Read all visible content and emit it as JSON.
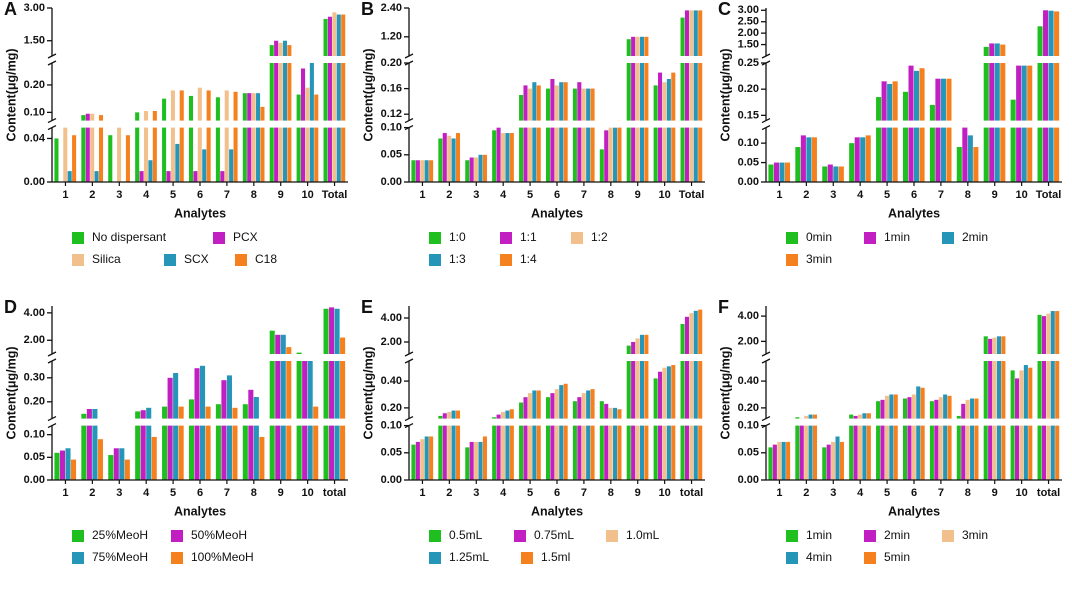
{
  "chart_data": [
    {
      "type": "bar",
      "panel": "A",
      "ylabel": "Content(μg/mg)",
      "xlabel": "Analytes",
      "categories": [
        "1",
        "2",
        "3",
        "4",
        "5",
        "6",
        "7",
        "8",
        "9",
        "10",
        "Total"
      ],
      "segments": [
        {
          "ylim": [
            0,
            0.05
          ],
          "yticks": [
            {
              "value": 0,
              "label": "0.00"
            },
            0.04
          ]
        },
        {
          "ylim": [
            0.07,
            0.28
          ],
          "yticks": [
            {
              "value": 0.1,
              "label": "0.10"
            },
            {
              "value": 0.2,
              "label": "0.20"
            }
          ]
        },
        {
          "ylim": [
            0.8,
            3.0
          ],
          "yticks": [
            {
              "value": 1.5,
              "label": "1.50"
            },
            {
              "value": 3.0,
              "label": "3.00"
            }
          ]
        }
      ],
      "series": [
        {
          "name": "No dispersant",
          "color": "#1fbf1f",
          "values": [
            0.04,
            0.09,
            0.043,
            0.1,
            0.15,
            0.16,
            0.155,
            0.17,
            1.3,
            0.165,
            2.5
          ]
        },
        {
          "name": "PCX",
          "color": "#c21fc2",
          "values": [
            0,
            0.095,
            0,
            0.01,
            0.01,
            0.01,
            0.01,
            0.17,
            1.5,
            0.26,
            2.6
          ]
        },
        {
          "name": "Silica",
          "color": "#f2c08c",
          "values": [
            0.05,
            0.095,
            0.05,
            0.105,
            0.18,
            0.19,
            0.18,
            0.17,
            1.4,
            0.19,
            2.8
          ]
        },
        {
          "name": "SCX",
          "color": "#2596b8",
          "values": [
            0.01,
            0.01,
            0,
            0.02,
            0.035,
            0.03,
            0.03,
            0.17,
            1.5,
            0.28,
            2.7
          ]
        },
        {
          "name": "C18",
          "color": "#f5801e",
          "values": [
            0.043,
            0.09,
            0.043,
            0.105,
            0.18,
            0.18,
            0.175,
            0.12,
            1.3,
            0.165,
            2.7
          ]
        }
      ]
    },
    {
      "type": "bar",
      "panel": "B",
      "ylabel": "Content(μg/mg)",
      "xlabel": "Analytes",
      "categories": [
        "1",
        "2",
        "3",
        "4",
        "5",
        "6",
        "7",
        "8",
        "9",
        "10",
        "Total"
      ],
      "segments": [
        {
          "ylim": [
            0,
            0.1
          ],
          "yticks": [
            {
              "value": 0,
              "label": "0.00"
            },
            0.05,
            {
              "value": 0.1,
              "label": "0.10"
            }
          ]
        },
        {
          "ylim": [
            0.11,
            0.2
          ],
          "yticks": [
            0.12,
            0.16,
            {
              "value": 0.2,
              "label": "0.20"
            }
          ]
        },
        {
          "ylim": [
            0.4,
            2.4
          ],
          "yticks": [
            {
              "value": 1.2,
              "label": "1.20"
            },
            {
              "value": 2.4,
              "label": "2.40"
            }
          ]
        }
      ],
      "series": [
        {
          "name": "1:0",
          "color": "#1fbf1f",
          "values": [
            0.04,
            0.08,
            0.04,
            0.095,
            0.15,
            0.16,
            0.16,
            0.06,
            1.1,
            0.165,
            2.0
          ]
        },
        {
          "name": "1:1",
          "color": "#c21fc2",
          "values": [
            0.04,
            0.09,
            0.045,
            0.1,
            0.165,
            0.175,
            0.17,
            0.095,
            1.2,
            0.185,
            2.3
          ]
        },
        {
          "name": "1:2",
          "color": "#f2c08c",
          "values": [
            0.04,
            0.085,
            0.045,
            0.09,
            0.16,
            0.165,
            0.16,
            0.1,
            1.2,
            0.17,
            2.3
          ]
        },
        {
          "name": "1:3",
          "color": "#2596b8",
          "values": [
            0.04,
            0.08,
            0.05,
            0.09,
            0.17,
            0.17,
            0.16,
            0.105,
            1.2,
            0.175,
            2.3
          ]
        },
        {
          "name": "1:4",
          "color": "#f5801e",
          "values": [
            0.04,
            0.09,
            0.05,
            0.09,
            0.165,
            0.17,
            0.16,
            0.11,
            1.2,
            0.185,
            2.3
          ]
        }
      ]
    },
    {
      "type": "bar",
      "panel": "C",
      "ylabel": "Content(μg/mg)",
      "xlabel": "Analytes",
      "categories": [
        "1",
        "2",
        "3",
        "4",
        "5",
        "6",
        "7",
        "8",
        "9",
        "10",
        "Total"
      ],
      "segments": [
        {
          "ylim": [
            0,
            0.14
          ],
          "yticks": [
            {
              "value": 0,
              "label": "0.00"
            },
            0.05,
            {
              "value": 0.1,
              "label": "0.10"
            }
          ]
        },
        {
          "ylim": [
            0.14,
            0.25
          ],
          "yticks": [
            0.15,
            {
              "value": 0.2,
              "label": "0.20"
            },
            0.25
          ]
        },
        {
          "ylim": [
            1.0,
            3.1
          ],
          "yticks": [
            {
              "value": 1.5,
              "label": "1.50"
            },
            {
              "value": 2.0,
              "label": "2.00"
            },
            {
              "value": 2.5,
              "label": "2.50"
            },
            {
              "value": 3.0,
              "label": "3.00"
            }
          ]
        }
      ],
      "series": [
        {
          "name": "0min",
          "color": "#1fbf1f",
          "values": [
            0.045,
            0.09,
            0.04,
            0.1,
            0.185,
            0.195,
            0.17,
            0.09,
            1.4,
            0.18,
            2.3
          ]
        },
        {
          "name": "1min",
          "color": "#c21fc2",
          "values": [
            0.05,
            0.12,
            0.045,
            0.115,
            0.215,
            0.245,
            0.22,
            0.14,
            1.55,
            0.245,
            3.0
          ]
        },
        {
          "name": "2min",
          "color": "#2596b8",
          "values": [
            0.05,
            0.115,
            0.04,
            0.115,
            0.21,
            0.235,
            0.22,
            0.12,
            1.55,
            0.245,
            2.98
          ]
        },
        {
          "name": "3min",
          "color": "#f5801e",
          "values": [
            0.05,
            0.115,
            0.04,
            0.12,
            0.215,
            0.24,
            0.22,
            0.09,
            1.5,
            0.245,
            2.95
          ]
        }
      ]
    },
    {
      "type": "bar",
      "panel": "D",
      "ylabel": "Content(μg/mg)",
      "xlabel": "Analytes",
      "categories": [
        "1",
        "2",
        "3",
        "4",
        "5",
        "6",
        "7",
        "8",
        "9",
        "10",
        "total"
      ],
      "segments": [
        {
          "ylim": [
            0,
            0.12
          ],
          "yticks": [
            {
              "value": 0,
              "label": "0.00"
            },
            0.05,
            {
              "value": 0.1,
              "label": "0.10"
            }
          ]
        },
        {
          "ylim": [
            0.13,
            0.37
          ],
          "yticks": [
            {
              "value": 0.2,
              "label": "0.20"
            },
            {
              "value": 0.3,
              "label": "0.30"
            }
          ]
        },
        {
          "ylim": [
            1.0,
            4.5
          ],
          "yticks": [
            {
              "value": 2.0,
              "label": "2.00"
            },
            {
              "value": 4.0,
              "label": "4.00"
            }
          ]
        }
      ],
      "series": [
        {
          "name": "25%MeoH",
          "color": "#1fbf1f",
          "values": [
            0.06,
            0.15,
            0.055,
            0.16,
            0.18,
            0.21,
            0.19,
            0.19,
            2.7,
            1.1,
            4.3
          ]
        },
        {
          "name": "50%MeoH",
          "color": "#c21fc2",
          "values": [
            0.065,
            0.17,
            0.07,
            0.165,
            0.3,
            0.34,
            0.29,
            0.25,
            2.4,
            1.0,
            4.4
          ]
        },
        {
          "name": "75%MeoH",
          "color": "#2596b8",
          "values": [
            0.07,
            0.17,
            0.07,
            0.175,
            0.32,
            0.35,
            0.31,
            0.22,
            2.4,
            1.0,
            4.3
          ]
        },
        {
          "name": "100%MeoH",
          "color": "#f5801e",
          "values": [
            0.045,
            0.09,
            0.045,
            0.095,
            0.18,
            0.18,
            0.175,
            0.095,
            1.5,
            0.18,
            2.2
          ]
        }
      ]
    },
    {
      "type": "bar",
      "panel": "E",
      "ylabel": "Content(μg/mg)",
      "xlabel": "Analytes",
      "categories": [
        "1",
        "2",
        "3",
        "4",
        "5",
        "6",
        "7",
        "8",
        "9",
        "10",
        "total"
      ],
      "segments": [
        {
          "ylim": [
            0,
            0.1
          ],
          "yticks": [
            {
              "value": 0,
              "label": "0.00"
            },
            0.05,
            {
              "value": 0.1,
              "label": "0.10"
            }
          ]
        },
        {
          "ylim": [
            0.12,
            0.55
          ],
          "yticks": [
            {
              "value": 0.2,
              "label": "0.20"
            },
            {
              "value": 0.4,
              "label": "0.40"
            }
          ]
        },
        {
          "ylim": [
            1.0,
            5.0
          ],
          "yticks": [
            {
              "value": 2.0,
              "label": "2.00"
            },
            {
              "value": 4.0,
              "label": "4.00"
            }
          ]
        }
      ],
      "series": [
        {
          "name": "0.5mL",
          "color": "#1fbf1f",
          "values": [
            0.065,
            0.14,
            0.06,
            0.13,
            0.24,
            0.28,
            0.25,
            0.25,
            1.7,
            0.42,
            3.5
          ]
        },
        {
          "name": "0.75mL",
          "color": "#c21fc2",
          "values": [
            0.07,
            0.16,
            0.07,
            0.15,
            0.28,
            0.31,
            0.28,
            0.23,
            2.0,
            0.47,
            4.1
          ]
        },
        {
          "name": "1.0mL",
          "color": "#f2c08c",
          "values": [
            0.075,
            0.17,
            0.07,
            0.17,
            0.31,
            0.34,
            0.31,
            0.2,
            2.3,
            0.5,
            4.4
          ]
        },
        {
          "name": "1.25mL",
          "color": "#2596b8",
          "values": [
            0.08,
            0.18,
            0.07,
            0.18,
            0.33,
            0.37,
            0.33,
            0.2,
            2.6,
            0.51,
            4.6
          ]
        },
        {
          "name": "1.5ml",
          "color": "#f5801e",
          "values": [
            0.08,
            0.18,
            0.08,
            0.19,
            0.33,
            0.38,
            0.34,
            0.19,
            2.6,
            0.52,
            4.7
          ]
        }
      ]
    },
    {
      "type": "bar",
      "panel": "F",
      "ylabel": "Content(μg/mg)",
      "xlabel": "Analytes",
      "categories": [
        "1",
        "2",
        "3",
        "4",
        "5",
        "6",
        "7",
        "8",
        "9",
        "10",
        "total"
      ],
      "segments": [
        {
          "ylim": [
            0,
            0.1
          ],
          "yticks": [
            {
              "value": 0,
              "label": "0.00"
            },
            0.05,
            {
              "value": 0.1,
              "label": "0.10"
            }
          ]
        },
        {
          "ylim": [
            0.12,
            0.55
          ],
          "yticks": [
            {
              "value": 0.2,
              "label": "0.20"
            },
            {
              "value": 0.4,
              "label": "0.40"
            }
          ]
        },
        {
          "ylim": [
            1.0,
            4.8
          ],
          "yticks": [
            {
              "value": 2.0,
              "label": "2.00"
            },
            {
              "value": 4.0,
              "label": "4.00"
            }
          ]
        }
      ],
      "series": [
        {
          "name": "1min",
          "color": "#1fbf1f",
          "values": [
            0.06,
            0.13,
            0.06,
            0.15,
            0.25,
            0.27,
            0.25,
            0.14,
            2.4,
            0.48,
            4.1
          ]
        },
        {
          "name": "2min",
          "color": "#c21fc2",
          "values": [
            0.065,
            0.12,
            0.065,
            0.14,
            0.26,
            0.28,
            0.26,
            0.23,
            2.2,
            0.42,
            4.0
          ]
        },
        {
          "name": "3min",
          "color": "#f2c08c",
          "values": [
            0.07,
            0.14,
            0.07,
            0.15,
            0.29,
            0.3,
            0.28,
            0.26,
            2.3,
            0.48,
            4.2
          ]
        },
        {
          "name": "4min",
          "color": "#2596b8",
          "values": [
            0.07,
            0.15,
            0.08,
            0.16,
            0.3,
            0.36,
            0.3,
            0.27,
            2.4,
            0.52,
            4.4
          ]
        },
        {
          "name": "5min",
          "color": "#f5801e",
          "values": [
            0.07,
            0.15,
            0.07,
            0.16,
            0.3,
            0.35,
            0.29,
            0.27,
            2.4,
            0.5,
            4.4
          ]
        }
      ]
    }
  ]
}
